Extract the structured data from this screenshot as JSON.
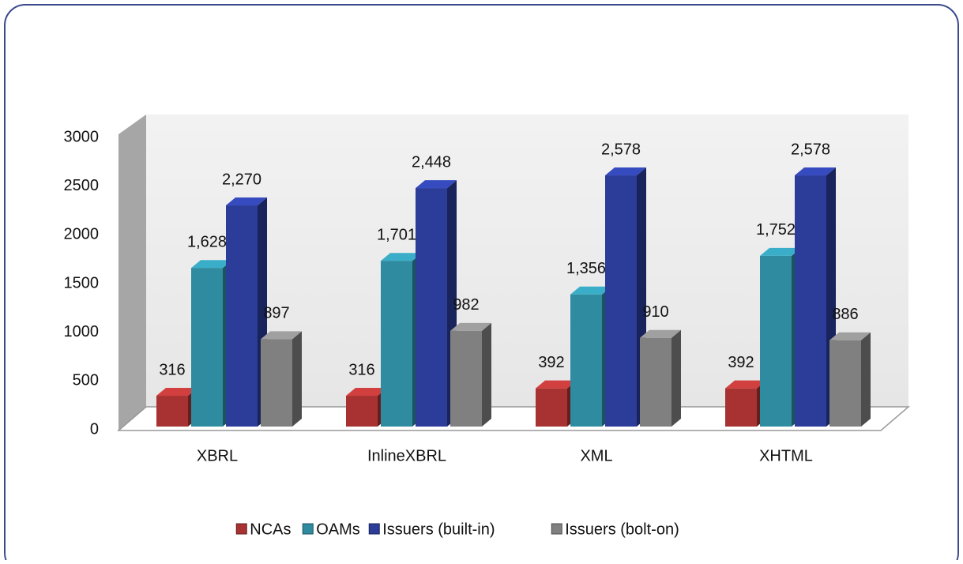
{
  "chart_data": {
    "type": "bar3d",
    "categories": [
      "XBRL",
      "InlineXBRL",
      "XML",
      "XHTML"
    ],
    "series": [
      {
        "name": "NCAs",
        "color": "#a83232",
        "values": [
          316,
          316,
          392,
          392
        ],
        "value_labels": [
          "316",
          "316",
          "392",
          "392"
        ]
      },
      {
        "name": "OAMs",
        "color": "#2e8ba0",
        "values": [
          1628,
          1701,
          1356,
          1752
        ],
        "value_labels": [
          "1,628",
          "1,701",
          "1,356",
          "1,752"
        ]
      },
      {
        "name": "Issuers (built-in)",
        "color": "#2b3c99",
        "values": [
          2270,
          2448,
          2578,
          2578
        ],
        "value_labels": [
          "2,270",
          "2,448",
          "2,578",
          "2,578"
        ]
      },
      {
        "name": "Issuers (bolt-on)",
        "color": "#808080",
        "values": [
          897,
          982,
          910,
          886
        ],
        "value_labels": [
          "897",
          "982",
          "910",
          "886"
        ]
      }
    ],
    "ylim": [
      0,
      3000
    ],
    "yticks": [
      0,
      500,
      1000,
      1500,
      2000,
      2500,
      3000
    ],
    "legend": "bottom"
  }
}
